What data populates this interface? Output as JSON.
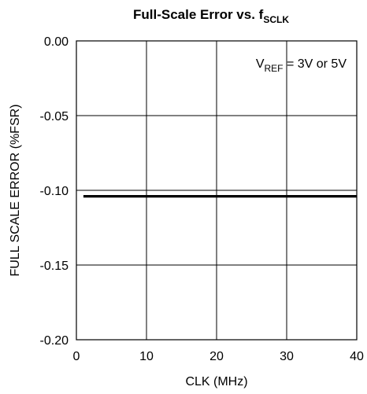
{
  "chart_data": {
    "type": "line",
    "title": {
      "main": "Full-Scale Error vs. f",
      "subscript": "SCLK"
    },
    "xlabel": "CLK (MHz)",
    "ylabel": "FULL SCALE ERROR (%FSR)",
    "xlim": [
      0,
      40
    ],
    "ylim": [
      -0.2,
      0.0
    ],
    "x_ticks": [
      0,
      10,
      20,
      30,
      40
    ],
    "x_tick_labels": [
      "0",
      "10",
      "20",
      "30",
      "40"
    ],
    "y_ticks": [
      0.0,
      -0.05,
      -0.1,
      -0.15,
      -0.2
    ],
    "y_tick_labels": [
      "0.00",
      "-0.05",
      "-0.10",
      "-0.15",
      "-0.20"
    ],
    "grid": true,
    "annotation": {
      "prefix": "V",
      "subscript": "REF",
      "suffix": " = 3V or 5V",
      "placement": "top-right"
    },
    "series": [
      {
        "x": [
          1,
          40
        ],
        "y": [
          -0.104,
          -0.104
        ],
        "color": "#000000"
      }
    ]
  }
}
